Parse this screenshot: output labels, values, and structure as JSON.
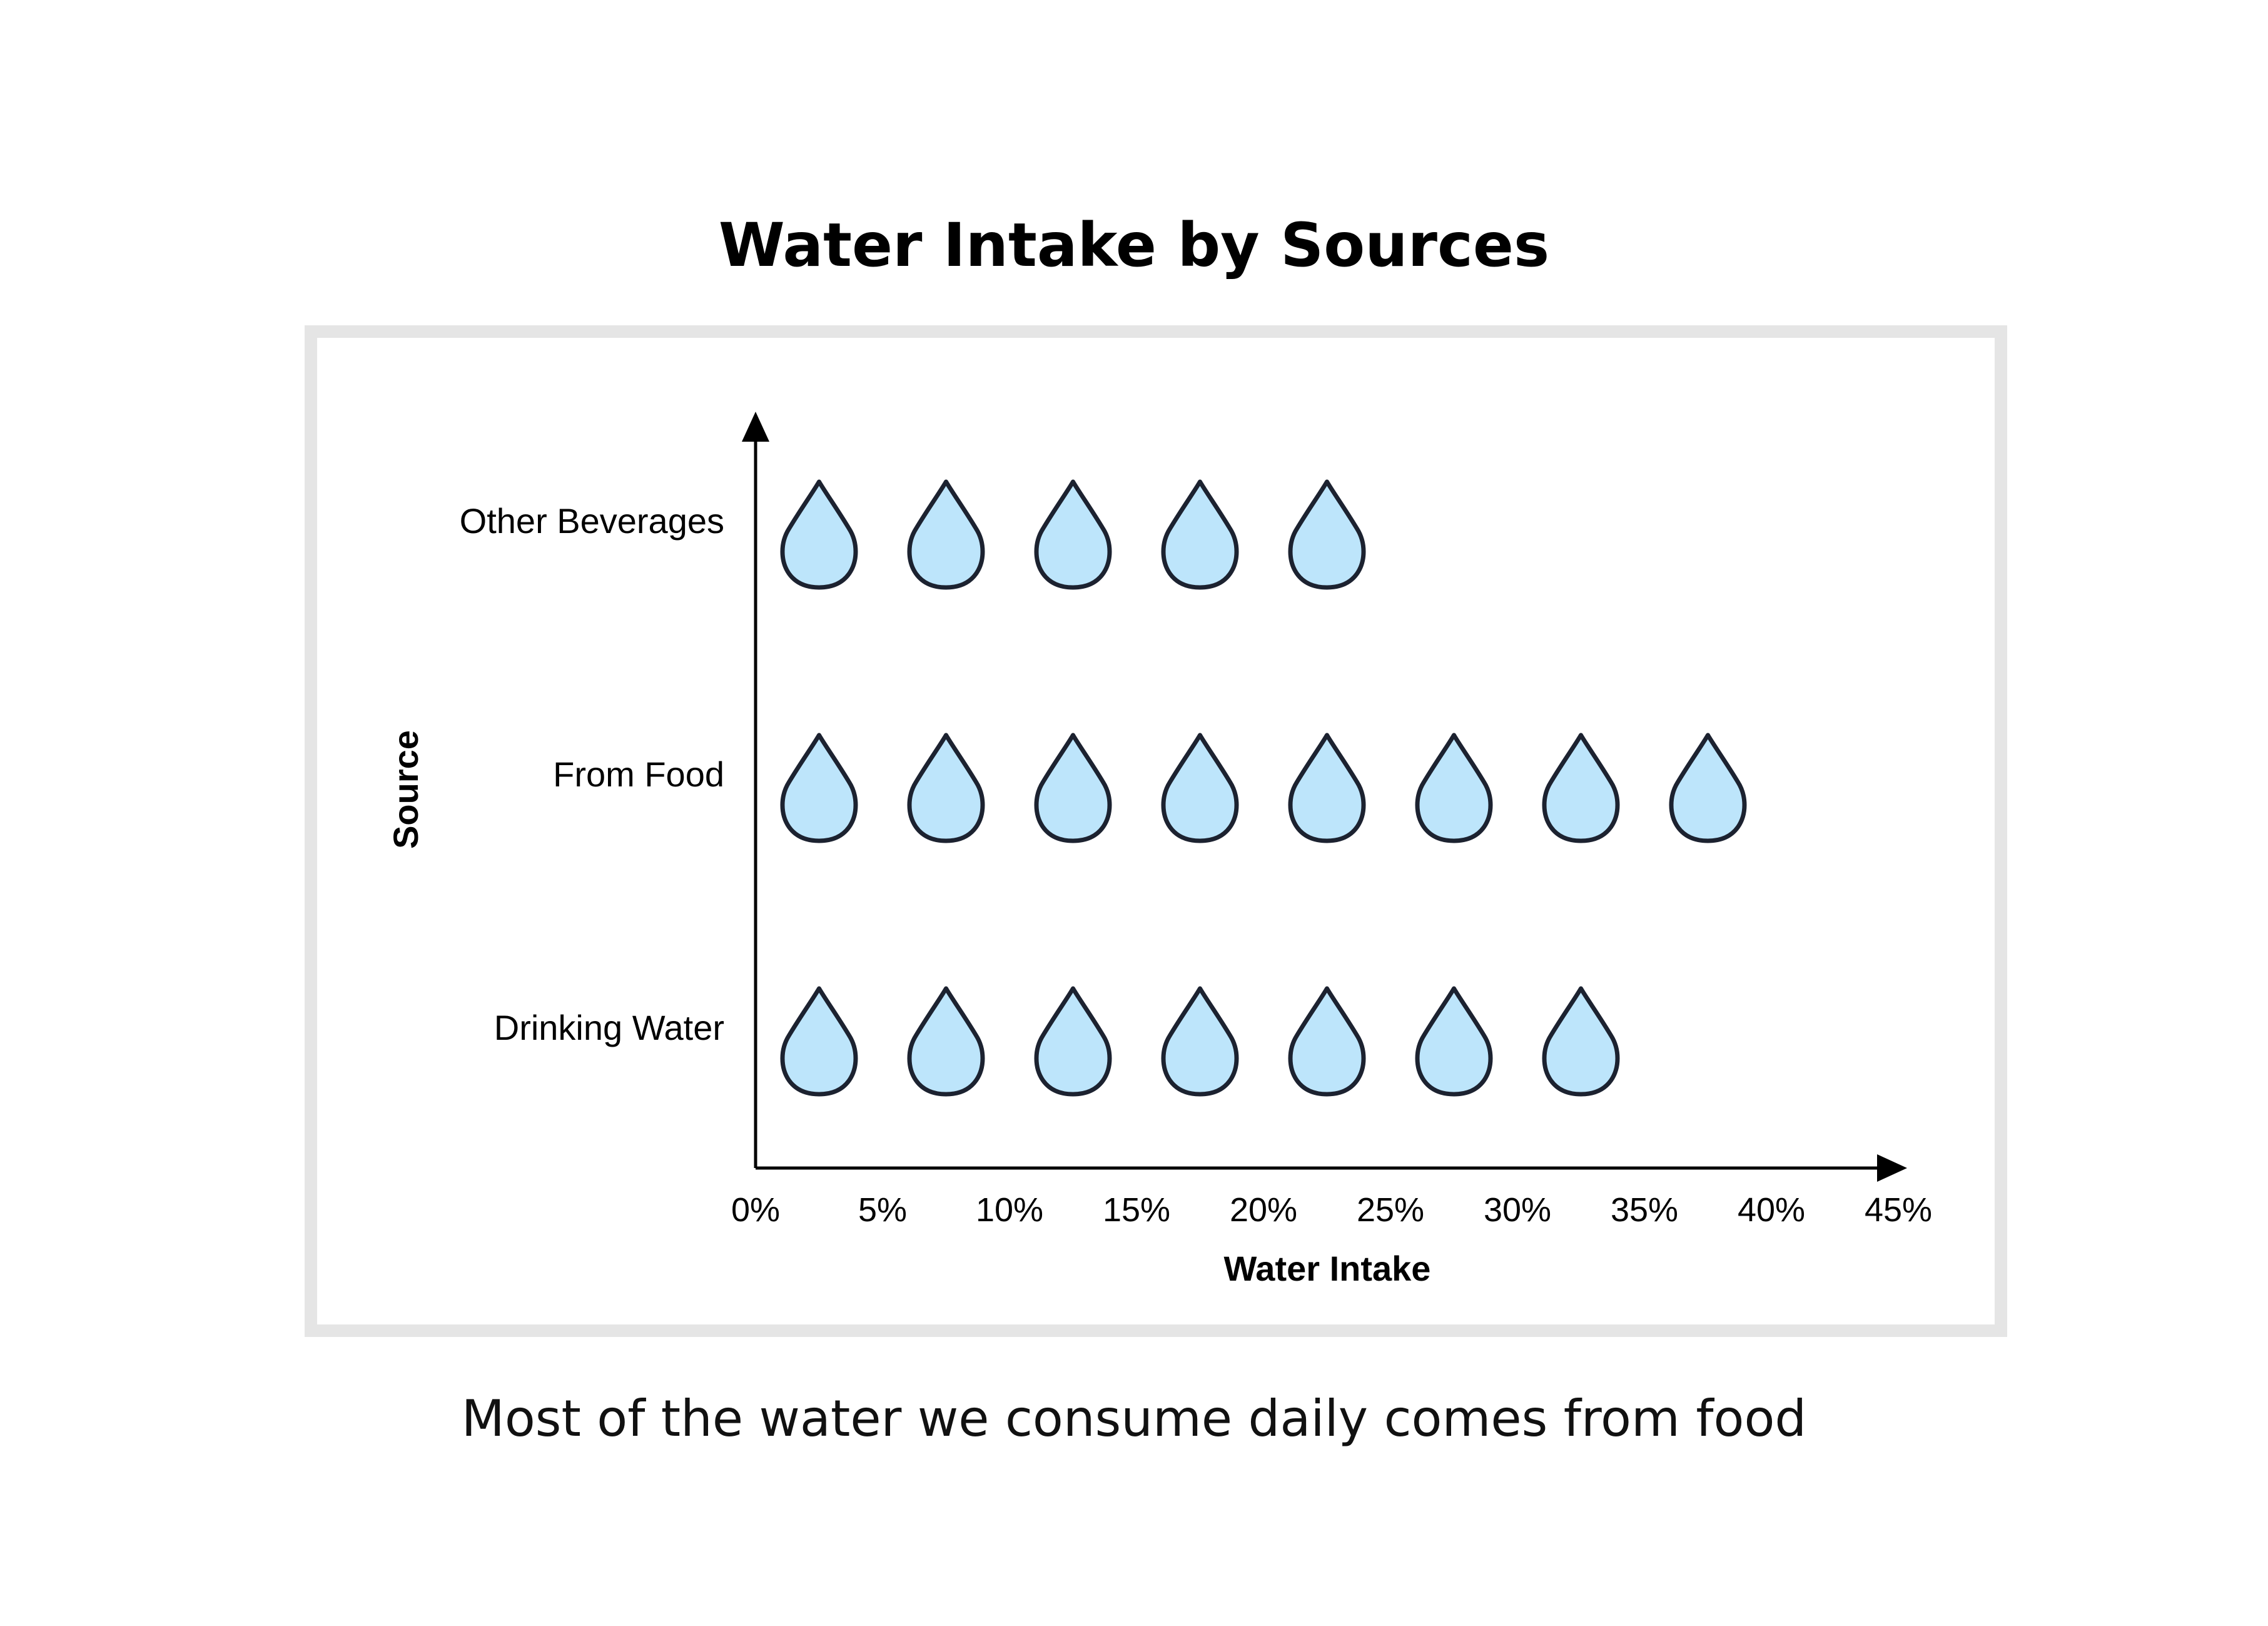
{
  "title": "Water Intake by Sources",
  "caption": "Most of the water we consume daily comes from food",
  "colors": {
    "drop_fill": "#bde5fb",
    "drop_stroke": "#1c2230",
    "axis": "#000000",
    "frame": "#e5e5e5"
  },
  "chart_data": {
    "type": "pictograph",
    "icon": "water-drop-icon",
    "unit_per_icon": 5,
    "categories": [
      "Other Beverages",
      "From Food",
      "Drinking Water"
    ],
    "values": [
      25,
      40,
      35
    ],
    "xlabel": "Water Intake",
    "ylabel": "Source",
    "xlim": [
      0,
      45
    ],
    "x_ticks": [
      "0%",
      "5%",
      "10%",
      "15%",
      "20%",
      "25%",
      "30%",
      "35%",
      "40%",
      "45%"
    ],
    "grid": false,
    "legend": "none"
  }
}
